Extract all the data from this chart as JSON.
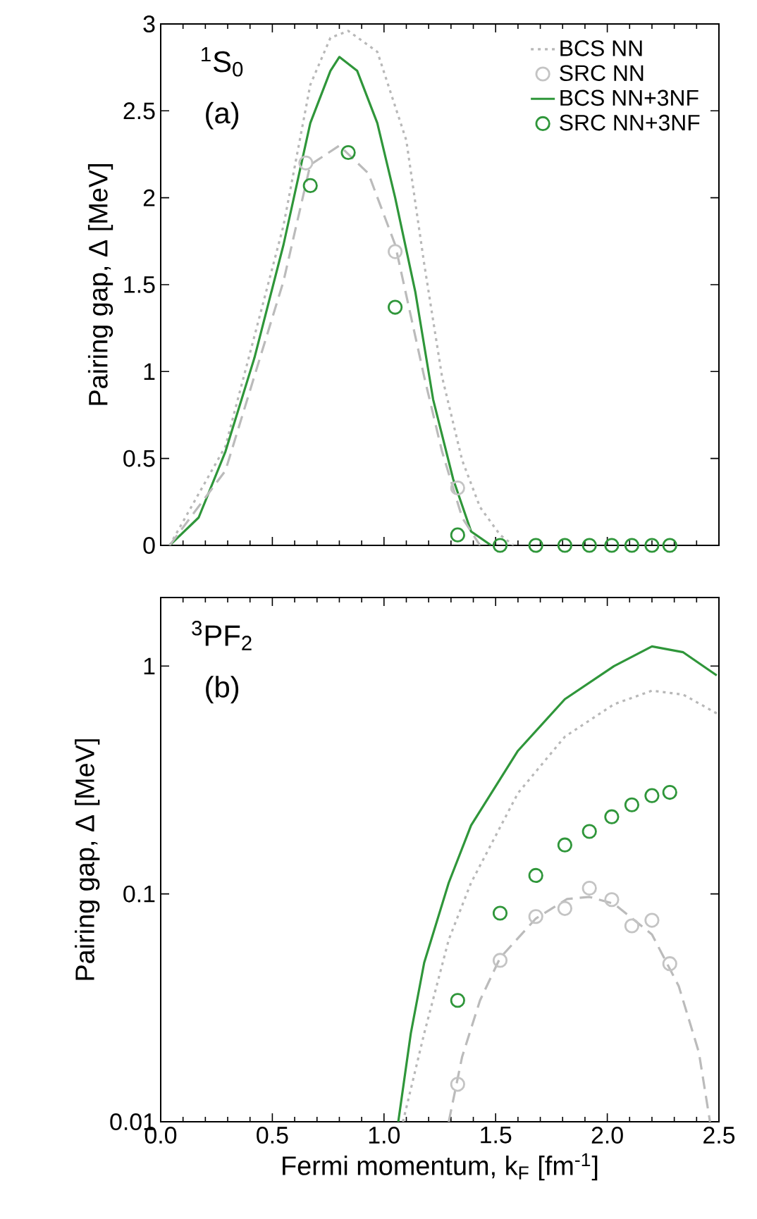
{
  "chart_data": [
    {
      "type": "line",
      "ylabel": "Pairing gap, Δ [MeV]",
      "annotations": [
        "$^{1}$S$_{0}$",
        "(a)"
      ],
      "xlim": [
        0,
        2.5
      ],
      "ylim": [
        0,
        3
      ],
      "xticks": [
        {
          "value": 0,
          "label": null
        },
        {
          "value": 0.5,
          "label": null
        },
        {
          "value": 1,
          "label": null
        },
        {
          "value": 1.5,
          "label": null
        },
        {
          "value": 2,
          "label": null
        },
        {
          "value": 2.5,
          "label": null
        }
      ],
      "yticks": [
        0,
        0.5,
        1,
        1.5,
        2,
        2.5,
        3
      ],
      "tick_labels": "y",
      "legend": "top right",
      "series": [
        {
          "name": "BCS NN",
          "line_style": "dotted",
          "color": "#b8b8b8",
          "x": [
            0.04,
            0.29,
            0.55,
            0.67,
            0.76,
            0.84,
            0.97,
            1.1,
            1.18,
            1.26,
            1.35,
            1.43,
            1.52,
            1.58
          ],
          "values": [
            0,
            0.57,
            1.84,
            2.65,
            2.92,
            2.96,
            2.84,
            2.33,
            1.62,
            0.97,
            0.49,
            0.22,
            0.06,
            0
          ]
        },
        {
          "name": "SRC NN",
          "type": "scatter",
          "marker": "circle",
          "color": "#c4c4c4",
          "x": [
            0.65,
            1.05,
            1.33
          ],
          "values": [
            2.2,
            1.69,
            0.33
          ]
        },
        {
          "name": "BCS NN+3NF",
          "line_style": "solid",
          "color": "#2f963a",
          "x": [
            0.04,
            0.17,
            0.29,
            0.42,
            0.55,
            0.67,
            0.76,
            0.8,
            0.88,
            0.97,
            1.05,
            1.14,
            1.22,
            1.31,
            1.39,
            1.48
          ],
          "values": [
            0,
            0.16,
            0.54,
            1.08,
            1.73,
            2.43,
            2.73,
            2.81,
            2.73,
            2.43,
            2.0,
            1.46,
            0.84,
            0.38,
            0.08,
            0
          ]
        },
        {
          "name": "SRC NN+3NF",
          "type": "scatter",
          "marker": "circle",
          "color": "#2f963a",
          "x": [
            0.67,
            0.84,
            1.05,
            1.33,
            1.52,
            1.68,
            1.81,
            1.92,
            2.02,
            2.11,
            2.2,
            2.28
          ],
          "values": [
            2.07,
            2.26,
            1.37,
            0.06,
            0,
            0,
            0,
            0,
            0,
            0,
            0,
            0
          ]
        },
        {
          "line_style": "dashed",
          "color": "#bbbbbb",
          "x": [
            0.04,
            0.29,
            0.55,
            0.67,
            0.8,
            0.93,
            1.05,
            1.18,
            1.26,
            1.35,
            1.43
          ],
          "values": [
            0,
            0.43,
            1.52,
            2.19,
            2.3,
            2.14,
            1.73,
            0.97,
            0.54,
            0.16,
            0
          ]
        }
      ]
    },
    {
      "type": "line",
      "xlabel": "Fermi momentum, k$_{F}$ [fm$^{-1}$]",
      "ylabel": "Pairing gap, Δ [MeV]",
      "annotations": [
        "$^{3}$PF$_{2}$",
        "(b)"
      ],
      "xlim": [
        0,
        2.5
      ],
      "ylim": [
        0.01,
        2
      ],
      "log": "y",
      "xticks": [
        {
          "value": 0,
          "label": "0.0"
        },
        {
          "value": 0.5,
          "label": "0.5"
        },
        {
          "value": 1,
          "label": "1.0"
        },
        {
          "value": 1.5,
          "label": "1.5"
        },
        {
          "value": 2,
          "label": "2.0"
        },
        {
          "value": 2.5,
          "label": "2.5"
        }
      ],
      "yticks": [
        0.01,
        0.1,
        1
      ],
      "series": [
        {
          "line_style": "dotted",
          "color": "#b8b8b8",
          "x": [
            1.085,
            1.18,
            1.29,
            1.39,
            1.6,
            1.81,
            2.03,
            2.2,
            2.34,
            2.49
          ],
          "values": [
            0.01,
            0.0244,
            0.063,
            0.112,
            0.277,
            0.49,
            0.68,
            0.78,
            0.75,
            0.62
          ]
        },
        {
          "type": "scatter",
          "marker": "circle",
          "color": "#c4c4c4",
          "x": [
            1.33,
            1.52,
            1.68,
            1.81,
            1.92,
            2.02,
            2.11,
            2.2,
            2.28
          ],
          "values": [
            0.0146,
            0.0511,
            0.0796,
            0.0863,
            0.106,
            0.0944,
            0.0724,
            0.0766,
            0.0494
          ]
        },
        {
          "line_style": "solid",
          "color": "#2f963a",
          "x": [
            1.064,
            1.12,
            1.18,
            1.29,
            1.39,
            1.6,
            1.81,
            2.03,
            2.2,
            2.34,
            2.49
          ],
          "values": [
            0.01,
            0.0244,
            0.0499,
            0.112,
            0.2,
            0.425,
            0.716,
            1.0,
            1.22,
            1.15,
            0.91
          ]
        },
        {
          "type": "scatter",
          "marker": "circle",
          "color": "#2f963a",
          "x": [
            1.33,
            1.52,
            1.68,
            1.81,
            1.92,
            2.02,
            2.11,
            2.2,
            2.28
          ],
          "values": [
            0.0341,
            0.0823,
            0.1205,
            0.164,
            0.188,
            0.218,
            0.246,
            0.27,
            0.279
          ]
        },
        {
          "line_style": "dashed",
          "color": "#bbbbbb",
          "x": [
            1.29,
            1.35,
            1.43,
            1.52,
            1.68,
            1.82,
            1.92,
            2.03,
            2.2,
            2.32,
            2.41,
            2.46
          ],
          "values": [
            0.01,
            0.0193,
            0.0341,
            0.0524,
            0.078,
            0.095,
            0.097,
            0.0905,
            0.0664,
            0.0394,
            0.0202,
            0.01
          ]
        }
      ]
    }
  ]
}
